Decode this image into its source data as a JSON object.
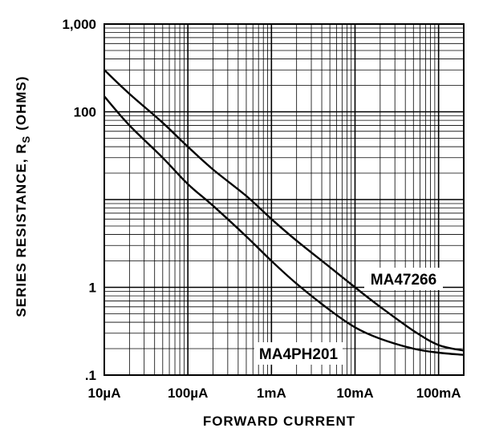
{
  "chart_data": {
    "type": "line",
    "title": "",
    "xlabel": "FORWARD CURRENT",
    "ylabel": "SERIES RESISTANCE, R",
    "ylabel_subscript": "S",
    "ylabel_unit": "(OHMS)",
    "x_scale": "log",
    "y_scale": "log",
    "xlim": [
      1e-05,
      0.2
    ],
    "ylim": [
      0.1,
      1000
    ],
    "grid": true,
    "x_ticks": [
      {
        "value": 1e-05,
        "label": "10µA"
      },
      {
        "value": 0.0001,
        "label": "100µA"
      },
      {
        "value": 0.001,
        "label": "1mA"
      },
      {
        "value": 0.01,
        "label": "10mA"
      },
      {
        "value": 0.1,
        "label": "100mA"
      }
    ],
    "y_ticks": [
      {
        "value": 0.1,
        "label": ".1"
      },
      {
        "value": 1,
        "label": "1"
      },
      {
        "value": 100,
        "label": "100"
      },
      {
        "value": 1000,
        "label": "1,000"
      }
    ],
    "series": [
      {
        "name": "MA47266",
        "color": "#000000",
        "x": [
          1e-05,
          2e-05,
          5e-05,
          0.0001,
          0.0002,
          0.0005,
          0.001,
          0.002,
          0.005,
          0.01,
          0.02,
          0.05,
          0.1,
          0.2
        ],
        "y": [
          300,
          160,
          75,
          40,
          22,
          11,
          6,
          3.4,
          1.7,
          1.0,
          0.6,
          0.32,
          0.22,
          0.19
        ]
      },
      {
        "name": "MA4PH201",
        "color": "#000000",
        "x": [
          1e-05,
          2e-05,
          5e-05,
          0.0001,
          0.0002,
          0.0005,
          0.001,
          0.002,
          0.005,
          0.01,
          0.02,
          0.05,
          0.1,
          0.2
        ],
        "y": [
          150,
          70,
          30,
          15,
          8.5,
          3.8,
          2.0,
          1.1,
          0.55,
          0.35,
          0.26,
          0.2,
          0.18,
          0.17
        ]
      }
    ],
    "series_label_text": {
      "MA47266": "MA47266",
      "MA4PH201": "MA4PH201"
    }
  }
}
